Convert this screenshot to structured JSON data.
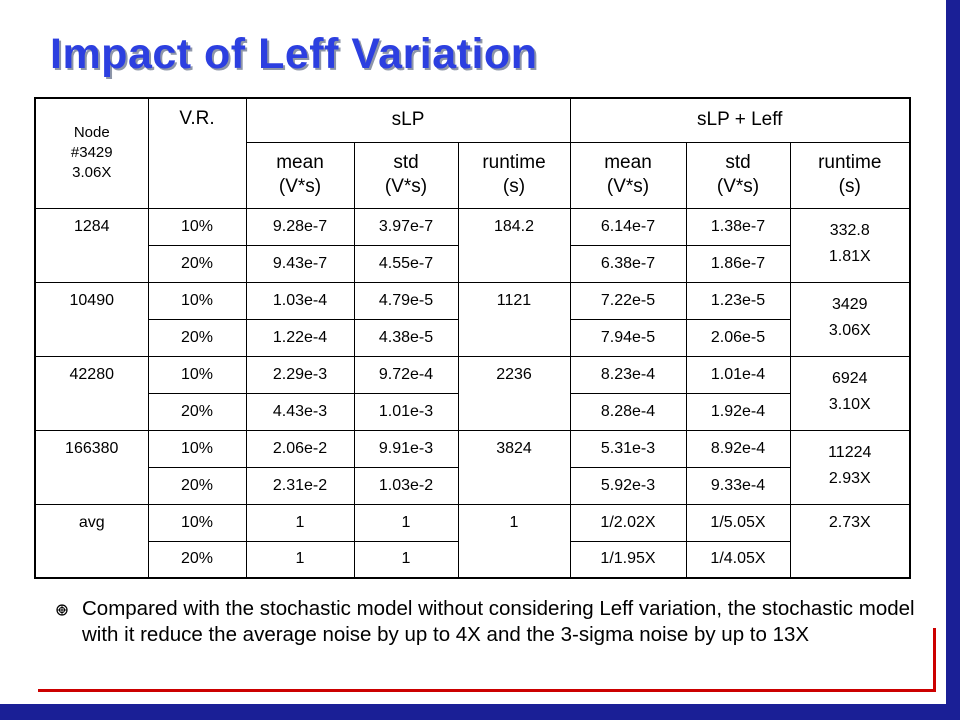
{
  "slide": {
    "title": "Impact of Leff Variation",
    "accent_colors": {
      "title": "#2c3fe0",
      "frame": "#1a1f96",
      "accent": "#cc0000"
    }
  },
  "table": {
    "corner": {
      "line1": "Node",
      "line2": "#3429",
      "line3": "3.06X"
    },
    "vr_header": "V.R.",
    "group_slp": "sLP",
    "group_slp_leff": "sLP + Leff",
    "subheaders": [
      {
        "line1": "mean",
        "line2": "(V*s)"
      },
      {
        "line1": "std",
        "line2": "(V*s)"
      },
      {
        "line1": "runtime",
        "line2": "(s)"
      },
      {
        "line1": "mean",
        "line2": "(V*s)"
      },
      {
        "line1": "std",
        "line2": "(V*s)"
      },
      {
        "line1": "runtime",
        "line2": "(s)"
      }
    ],
    "groups": [
      {
        "node": "1284",
        "slp_runtime": "184.2",
        "leff_runtime": "332.8",
        "leff_speedup": "1.81X",
        "rows": [
          {
            "vr": "10%",
            "slp_mean": "9.28e-7",
            "slp_std": "3.97e-7",
            "leff_mean": "6.14e-7",
            "leff_std": "1.38e-7"
          },
          {
            "vr": "20%",
            "slp_mean": "9.43e-7",
            "slp_std": "4.55e-7",
            "leff_mean": "6.38e-7",
            "leff_std": "1.86e-7"
          }
        ]
      },
      {
        "node": "10490",
        "slp_runtime": "1121",
        "leff_runtime": "3429",
        "leff_speedup": "3.06X",
        "rows": [
          {
            "vr": "10%",
            "slp_mean": "1.03e-4",
            "slp_std": "4.79e-5",
            "leff_mean": "7.22e-5",
            "leff_std": "1.23e-5"
          },
          {
            "vr": "20%",
            "slp_mean": "1.22e-4",
            "slp_std": "4.38e-5",
            "leff_mean": "7.94e-5",
            "leff_std": "2.06e-5"
          }
        ]
      },
      {
        "node": "42280",
        "slp_runtime": "2236",
        "leff_runtime": "6924",
        "leff_speedup": "3.10X",
        "rows": [
          {
            "vr": "10%",
            "slp_mean": "2.29e-3",
            "slp_std": "9.72e-4",
            "leff_mean": "8.23e-4",
            "leff_std": "1.01e-4"
          },
          {
            "vr": "20%",
            "slp_mean": "4.43e-3",
            "slp_std": "1.01e-3",
            "leff_mean": "8.28e-4",
            "leff_std": "1.92e-4"
          }
        ]
      },
      {
        "node": "166380",
        "slp_runtime": "3824",
        "leff_runtime": "11224",
        "leff_speedup": "2.93X",
        "rows": [
          {
            "vr": "10%",
            "slp_mean": "2.06e-2",
            "slp_std": "9.91e-3",
            "leff_mean": "5.31e-3",
            "leff_std": "8.92e-4"
          },
          {
            "vr": "20%",
            "slp_mean": "2.31e-2",
            "slp_std": "1.03e-2",
            "leff_mean": "5.92e-3",
            "leff_std": "9.33e-4"
          }
        ]
      }
    ],
    "avg": {
      "node": "avg",
      "slp_runtime": "1",
      "leff_runtime": "2.73X",
      "rows": [
        {
          "vr": "10%",
          "slp_mean": "1",
          "slp_std": "1",
          "leff_mean": "1/2.02X",
          "leff_std": "1/5.05X"
        },
        {
          "vr": "20%",
          "slp_mean": "1",
          "slp_std": "1",
          "leff_mean": "1/1.95X",
          "leff_std": "1/4.05X"
        }
      ]
    }
  },
  "bullets": [
    {
      "icon": "target-bullet-icon",
      "text": "Compared with the stochastic model without considering Leff variation, the stochastic model with it reduce the average noise by up to 4X and the 3-sigma noise by up to 13X"
    }
  ]
}
